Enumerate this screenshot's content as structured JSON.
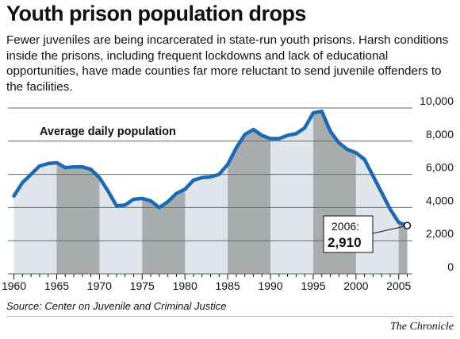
{
  "headline": "Youth prison population drops",
  "subtitle": "Fewer juveniles are being incarcerated in state-run youth prisons. Harsh conditions inside the prisons, including frequent lockdowns and lack of educational opportunities, have made counties far more reluctant to send juvenile offenders to the facilities.",
  "source": "Source: Center on Juvenile and Criminal Justice",
  "credit": "The Chronicle",
  "colors": {
    "line": "#1d69b4",
    "fill_light": "#dfe5eb",
    "fill_dark": "#a9acad",
    "grid": "#666666"
  },
  "chart_data": {
    "type": "area",
    "title": "Average daily population",
    "xlabel": "",
    "ylabel": "",
    "xlim": [
      1960,
      2006
    ],
    "ylim": [
      0,
      10000
    ],
    "x_ticks": [
      "1960",
      "1965",
      "1970",
      "1975",
      "1980",
      "1985",
      "1990",
      "1995",
      "2000",
      "2005"
    ],
    "y_ticks": [
      "0",
      "2,000",
      "4,000",
      "6,000",
      "8,000",
      "10,000"
    ],
    "grid": true,
    "shaded_bands": "alternating 5-year bands",
    "series": [
      {
        "x": [
          1960,
          1961,
          1962,
          1963,
          1964,
          1965,
          1966,
          1967,
          1968,
          1969,
          1970,
          1971,
          1972,
          1973,
          1974,
          1975,
          1976,
          1977,
          1978,
          1979,
          1980,
          1981,
          1982,
          1983,
          1984,
          1985,
          1986,
          1987,
          1988,
          1989,
          1990,
          1991,
          1992,
          1993,
          1994,
          1995,
          1996,
          1997,
          1998,
          1999,
          2000,
          2001,
          2002,
          2003,
          2004,
          2005,
          2006
        ],
        "y": [
          4700,
          5500,
          6000,
          6500,
          6650,
          6700,
          6400,
          6450,
          6450,
          6300,
          5800,
          5000,
          4100,
          4150,
          4500,
          4550,
          4400,
          4000,
          4350,
          4850,
          5100,
          5650,
          5800,
          5850,
          6000,
          6600,
          7600,
          8400,
          8700,
          8350,
          8150,
          8150,
          8350,
          8450,
          8800,
          9700,
          9800,
          8600,
          7900,
          7500,
          7300,
          6900,
          5900,
          4900,
          3900,
          3100,
          2910
        ]
      }
    ],
    "annotation": {
      "label": "2006:",
      "value": "2,910",
      "x": 2006,
      "y": 2910
    }
  }
}
